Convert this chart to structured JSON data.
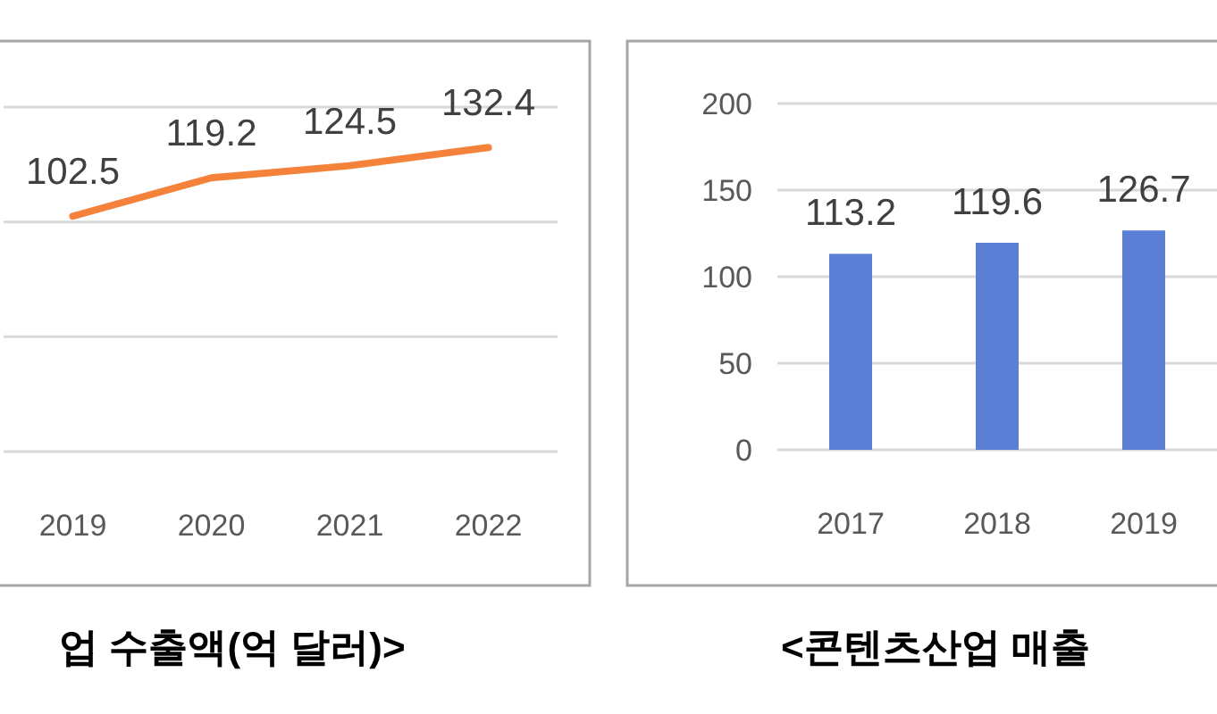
{
  "chart_data": [
    {
      "type": "line",
      "title": "업 수출액(억 달러)>",
      "categories": [
        "2019",
        "2020",
        "2021",
        "2022"
      ],
      "series": [
        {
          "color": "#f4823a",
          "values": [
            102.5,
            119.2,
            124.5,
            132.4
          ]
        }
      ],
      "ylim": [
        0,
        150
      ],
      "yticks": [
        {
          "value": 0,
          "label": null
        },
        {
          "value": 50,
          "label": null
        },
        {
          "value": 100,
          "label": null
        },
        {
          "value": 150,
          "label": null
        }
      ],
      "tick_labels": "x",
      "grid": "y",
      "data_labels": true,
      "marker": "none",
      "line_style": "solid"
    },
    {
      "type": "bar",
      "title": "<콘텐츠산업 매출",
      "categories": [
        "2017",
        "2018",
        "2019"
      ],
      "series": [
        {
          "color": "#5b7fd4",
          "values": [
            113.2,
            119.6,
            126.7
          ]
        }
      ],
      "ylim": [
        0,
        200
      ],
      "yticks": [
        0,
        50,
        100,
        150,
        200
      ],
      "grid": "y",
      "data_labels": true
    }
  ]
}
